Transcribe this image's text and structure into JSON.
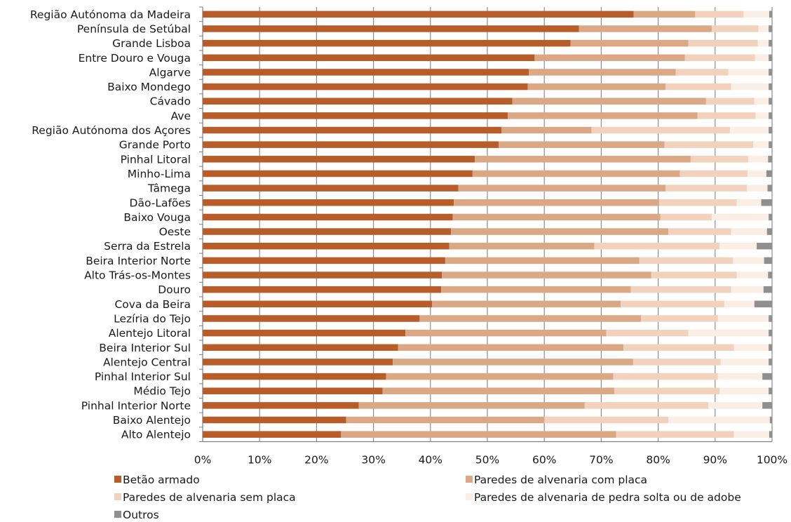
{
  "chart_data": {
    "type": "bar",
    "orientation": "horizontal",
    "stacked": true,
    "percent": true,
    "xlim": [
      0,
      100
    ],
    "x_ticks": [
      "0%",
      "10%",
      "20%",
      "30%",
      "40%",
      "50%",
      "60%",
      "70%",
      "80%",
      "90%",
      "100%"
    ],
    "grid": "vertical",
    "legend_position": "bottom",
    "categories": [
      "Região Autónoma da Madeira",
      "Península de Setúbal",
      "Grande Lisboa",
      "Entre Douro e Vouga",
      "Algarve",
      "Baixo Mondego",
      "Cávado",
      "Ave",
      "Região Autónoma dos Açores",
      "Grande Porto",
      "Pinhal Litoral",
      "Minho-Lima",
      "Tâmega",
      "Dão-Lafões",
      "Baixo Vouga",
      "Oeste",
      "Serra da Estrela",
      "Beira Interior Norte",
      "Alto Trás-os-Montes",
      "Douro",
      "Cova da Beira",
      "Lezíria do Tejo",
      "Alentejo Litoral",
      "Beira Interior Sul",
      "Alentejo Central",
      "Pinhal Interior Sul",
      "Médio Tejo",
      "Pinhal Interior Norte",
      "Baixo Alentejo",
      "Alto Alentejo"
    ],
    "series": [
      {
        "name": "Betão armado",
        "color": "#b85c2a",
        "values": [
          75.7,
          66.1,
          64.6,
          58.3,
          57.3,
          57.1,
          54.4,
          53.6,
          52.5,
          52.0,
          47.8,
          47.4,
          44.9,
          44.1,
          43.9,
          43.6,
          43.3,
          42.6,
          42.0,
          41.9,
          40.3,
          38.1,
          35.6,
          34.3,
          33.4,
          32.2,
          31.6,
          27.4,
          25.2,
          24.3
        ]
      },
      {
        "name": "Paredes de alvenaria com placa",
        "color": "#dba885",
        "values": [
          10.8,
          23.3,
          20.7,
          26.4,
          25.8,
          24.2,
          34.0,
          33.3,
          15.8,
          29.1,
          37.9,
          36.4,
          36.4,
          36.1,
          36.5,
          38.2,
          25.5,
          34.1,
          36.8,
          33.3,
          33.1,
          38.9,
          35.3,
          39.6,
          42.2,
          39.9,
          40.7,
          39.7,
          34.8,
          48.3
        ]
      },
      {
        "name": "Paredes de alvenaria sem placa",
        "color": "#f2d2bd",
        "values": [
          8.5,
          8.2,
          12.2,
          12.3,
          9.2,
          11.5,
          8.5,
          10.2,
          24.3,
          15.6,
          10.1,
          11.9,
          14.3,
          13.6,
          9.0,
          11.0,
          22.0,
          16.4,
          15.0,
          17.6,
          18.2,
          13.5,
          14.4,
          19.4,
          15.4,
          18.4,
          18.5,
          21.7,
          21.8,
          20.7
        ]
      },
      {
        "name": "Paredes de alvenaria de pedra solta ou de adobe",
        "color": "#fbeee4",
        "values": [
          4.5,
          1.8,
          1.9,
          2.4,
          7.1,
          6.6,
          2.5,
          2.3,
          6.8,
          2.7,
          3.5,
          3.3,
          3.6,
          4.3,
          10.0,
          6.3,
          6.5,
          5.5,
          5.5,
          5.7,
          5.3,
          8.9,
          14.1,
          6.1,
          8.4,
          7.8,
          8.6,
          9.5,
          17.8,
          6.2
        ]
      },
      {
        "name": "Outros",
        "color": "#8f8f8f",
        "values": [
          0.5,
          0.6,
          0.6,
          0.6,
          0.6,
          0.6,
          0.6,
          0.6,
          0.6,
          0.6,
          0.7,
          1.0,
          0.8,
          1.9,
          0.6,
          0.9,
          2.7,
          1.4,
          0.7,
          1.5,
          3.1,
          0.6,
          0.6,
          0.6,
          0.6,
          1.7,
          0.6,
          1.7,
          0.4,
          0.5
        ]
      }
    ]
  }
}
